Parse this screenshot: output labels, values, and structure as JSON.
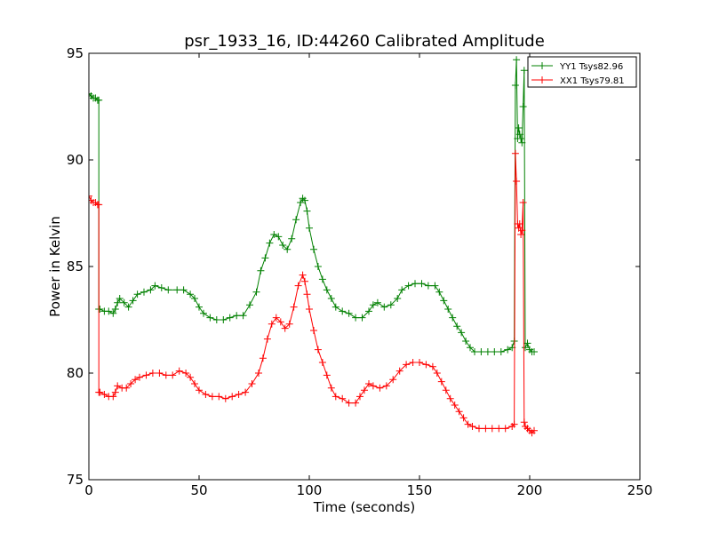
{
  "chart_data": {
    "type": "line",
    "title": "psr_1933_16, ID:44260 Calibrated Amplitude",
    "xlabel": "Time (seconds)",
    "ylabel": "Power in Kelvin",
    "xlim": [
      0,
      250
    ],
    "ylim": [
      75,
      95
    ],
    "x_ticks": [
      0,
      50,
      100,
      150,
      200,
      250
    ],
    "y_ticks": [
      75,
      80,
      85,
      90,
      95
    ],
    "grid": false,
    "legend_position": "top-right",
    "marker": "+",
    "series": [
      {
        "name": "YY1 Tsys82.96",
        "color": "#008000",
        "points": [
          [
            0,
            93.1
          ],
          [
            1,
            93.0
          ],
          [
            2,
            92.9
          ],
          [
            3,
            92.9
          ],
          [
            4,
            92.8
          ],
          [
            4.5,
            92.8
          ],
          [
            4.5,
            83.0
          ],
          [
            5,
            83.0
          ],
          [
            7,
            82.9
          ],
          [
            9,
            82.9
          ],
          [
            11,
            82.8
          ],
          [
            12,
            83.0
          ],
          [
            13,
            83.3
          ],
          [
            14,
            83.5
          ],
          [
            16,
            83.3
          ],
          [
            18,
            83.1
          ],
          [
            20,
            83.4
          ],
          [
            22,
            83.7
          ],
          [
            25,
            83.8
          ],
          [
            28,
            83.9
          ],
          [
            30,
            84.1
          ],
          [
            33,
            84.0
          ],
          [
            36,
            83.9
          ],
          [
            40,
            83.9
          ],
          [
            43,
            83.9
          ],
          [
            46,
            83.7
          ],
          [
            48,
            83.5
          ],
          [
            50,
            83.1
          ],
          [
            52,
            82.8
          ],
          [
            55,
            82.6
          ],
          [
            58,
            82.5
          ],
          [
            61,
            82.5
          ],
          [
            64,
            82.6
          ],
          [
            67,
            82.7
          ],
          [
            70,
            82.7
          ],
          [
            73,
            83.2
          ],
          [
            76,
            83.8
          ],
          [
            78,
            84.8
          ],
          [
            80,
            85.4
          ],
          [
            82,
            86.1
          ],
          [
            84,
            86.5
          ],
          [
            86,
            86.4
          ],
          [
            88,
            86.0
          ],
          [
            90,
            85.8
          ],
          [
            92,
            86.3
          ],
          [
            94,
            87.2
          ],
          [
            96,
            88.0
          ],
          [
            97,
            88.2
          ],
          [
            98,
            88.1
          ],
          [
            99,
            87.6
          ],
          [
            100,
            86.8
          ],
          [
            102,
            85.8
          ],
          [
            104,
            85.0
          ],
          [
            106,
            84.4
          ],
          [
            108,
            83.9
          ],
          [
            110,
            83.5
          ],
          [
            112,
            83.1
          ],
          [
            115,
            82.9
          ],
          [
            118,
            82.8
          ],
          [
            121,
            82.6
          ],
          [
            124,
            82.6
          ],
          [
            127,
            82.9
          ],
          [
            129,
            83.2
          ],
          [
            131,
            83.3
          ],
          [
            134,
            83.1
          ],
          [
            137,
            83.2
          ],
          [
            140,
            83.5
          ],
          [
            142,
            83.9
          ],
          [
            145,
            84.1
          ],
          [
            148,
            84.2
          ],
          [
            151,
            84.2
          ],
          [
            154,
            84.1
          ],
          [
            157,
            84.1
          ],
          [
            159,
            83.8
          ],
          [
            161,
            83.4
          ],
          [
            163,
            83.0
          ],
          [
            165,
            82.6
          ],
          [
            167,
            82.2
          ],
          [
            169,
            81.9
          ],
          [
            171,
            81.5
          ],
          [
            173,
            81.2
          ],
          [
            175,
            81.0
          ],
          [
            178,
            81.0
          ],
          [
            181,
            81.0
          ],
          [
            184,
            81.0
          ],
          [
            187,
            81.0
          ],
          [
            190,
            81.1
          ],
          [
            192,
            81.2
          ],
          [
            193,
            81.5
          ],
          [
            193.5,
            93.5
          ],
          [
            194,
            94.7
          ],
          [
            194.5,
            91.0
          ],
          [
            195,
            91.5
          ],
          [
            195.5,
            91.2
          ],
          [
            196,
            91.0
          ],
          [
            196.5,
            90.8
          ],
          [
            197,
            92.5
          ],
          [
            197.5,
            94.2
          ],
          [
            198,
            81.2
          ],
          [
            199,
            81.4
          ],
          [
            200,
            81.1
          ],
          [
            201,
            81.0
          ],
          [
            202,
            81.0
          ]
        ]
      },
      {
        "name": "XX1 Tsys79.81",
        "color": "#ff0000",
        "points": [
          [
            0,
            88.3
          ],
          [
            1,
            88.1
          ],
          [
            2,
            88.0
          ],
          [
            3,
            88.0
          ],
          [
            4,
            87.9
          ],
          [
            4.5,
            87.9
          ],
          [
            4.5,
            79.1
          ],
          [
            5,
            79.1
          ],
          [
            7,
            79.0
          ],
          [
            9,
            78.9
          ],
          [
            11,
            78.9
          ],
          [
            12,
            79.1
          ],
          [
            13,
            79.4
          ],
          [
            15,
            79.3
          ],
          [
            17,
            79.3
          ],
          [
            19,
            79.5
          ],
          [
            21,
            79.7
          ],
          [
            23,
            79.8
          ],
          [
            26,
            79.9
          ],
          [
            29,
            80.0
          ],
          [
            32,
            80.0
          ],
          [
            35,
            79.9
          ],
          [
            38,
            79.9
          ],
          [
            41,
            80.1
          ],
          [
            44,
            80.0
          ],
          [
            46,
            79.8
          ],
          [
            48,
            79.5
          ],
          [
            50,
            79.2
          ],
          [
            53,
            79.0
          ],
          [
            56,
            78.9
          ],
          [
            59,
            78.9
          ],
          [
            62,
            78.8
          ],
          [
            65,
            78.9
          ],
          [
            68,
            79.0
          ],
          [
            71,
            79.1
          ],
          [
            74,
            79.5
          ],
          [
            77,
            80.0
          ],
          [
            79,
            80.7
          ],
          [
            81,
            81.6
          ],
          [
            83,
            82.3
          ],
          [
            85,
            82.6
          ],
          [
            87,
            82.4
          ],
          [
            89,
            82.1
          ],
          [
            91,
            82.3
          ],
          [
            93,
            83.1
          ],
          [
            95,
            84.1
          ],
          [
            97,
            84.6
          ],
          [
            98,
            84.3
          ],
          [
            99,
            83.7
          ],
          [
            100,
            83.0
          ],
          [
            102,
            82.0
          ],
          [
            104,
            81.1
          ],
          [
            106,
            80.5
          ],
          [
            108,
            79.9
          ],
          [
            110,
            79.3
          ],
          [
            112,
            78.9
          ],
          [
            115,
            78.8
          ],
          [
            118,
            78.6
          ],
          [
            121,
            78.6
          ],
          [
            123,
            78.9
          ],
          [
            125,
            79.2
          ],
          [
            127,
            79.5
          ],
          [
            129,
            79.4
          ],
          [
            132,
            79.3
          ],
          [
            135,
            79.4
          ],
          [
            138,
            79.7
          ],
          [
            141,
            80.1
          ],
          [
            144,
            80.4
          ],
          [
            147,
            80.5
          ],
          [
            150,
            80.5
          ],
          [
            153,
            80.4
          ],
          [
            156,
            80.3
          ],
          [
            158,
            80.0
          ],
          [
            160,
            79.6
          ],
          [
            162,
            79.2
          ],
          [
            164,
            78.8
          ],
          [
            166,
            78.5
          ],
          [
            168,
            78.2
          ],
          [
            170,
            77.9
          ],
          [
            172,
            77.6
          ],
          [
            174,
            77.5
          ],
          [
            177,
            77.4
          ],
          [
            180,
            77.4
          ],
          [
            183,
            77.4
          ],
          [
            186,
            77.4
          ],
          [
            189,
            77.4
          ],
          [
            192,
            77.5
          ],
          [
            193,
            77.6
          ],
          [
            193.5,
            90.3
          ],
          [
            194,
            89.0
          ],
          [
            194.5,
            87.0
          ],
          [
            195,
            86.8
          ],
          [
            195.5,
            87.0
          ],
          [
            196,
            86.5
          ],
          [
            196.5,
            86.7
          ],
          [
            197,
            88.0
          ],
          [
            197.5,
            77.7
          ],
          [
            198,
            77.5
          ],
          [
            199,
            77.4
          ],
          [
            200,
            77.3
          ],
          [
            201,
            77.2
          ],
          [
            202,
            77.3
          ]
        ]
      }
    ]
  }
}
